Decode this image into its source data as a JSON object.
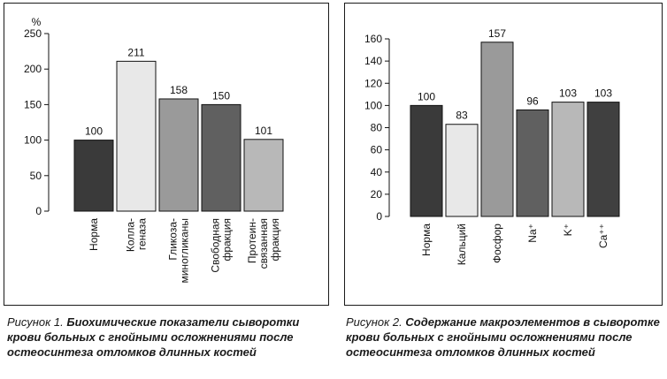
{
  "chart_data": [
    {
      "type": "bar",
      "ylabel": "%",
      "ylim": [
        0,
        250
      ],
      "yticks": [
        0,
        50,
        100,
        150,
        200,
        250
      ],
      "categories": [
        [
          "Норма"
        ],
        [
          "Колла-",
          "геназа"
        ],
        [
          "Гликоза-",
          "миногликаны"
        ],
        [
          "Свободная",
          "фракция"
        ],
        [
          "Протеин-",
          "связанная",
          "фракция"
        ]
      ],
      "values": [
        100,
        211,
        158,
        150,
        101
      ],
      "bar_colors": [
        "#3a3a3a",
        "#e8e8e8",
        "#9a9a9a",
        "#606060",
        "#b8b8b8"
      ]
    },
    {
      "type": "bar",
      "ylim": [
        0,
        160
      ],
      "yticks": [
        0,
        20,
        40,
        60,
        80,
        100,
        120,
        140,
        160
      ],
      "categories": [
        [
          "Норма"
        ],
        [
          "Кальций"
        ],
        [
          "Фосфор"
        ],
        [
          "Na⁺"
        ],
        [
          "K⁺"
        ],
        [
          "Ca⁺⁺"
        ]
      ],
      "values": [
        100,
        83,
        157,
        96,
        103,
        103
      ],
      "bar_colors": [
        "#3a3a3a",
        "#e8e8e8",
        "#9a9a9a",
        "#606060",
        "#b8b8b8",
        "#404040"
      ]
    }
  ],
  "captions": [
    {
      "label": "Рисунок 1.",
      "text": "Биохимические показатели сыворотки крови больных с гнойными осложнениями после остеосинтеза отломков длинных костей"
    },
    {
      "label": "Рисунок 2.",
      "text": "Содержание макроэлементов в сыворотке крови больных с гнойными осложнениями после остеосинтеза отломков длинных костей"
    }
  ]
}
